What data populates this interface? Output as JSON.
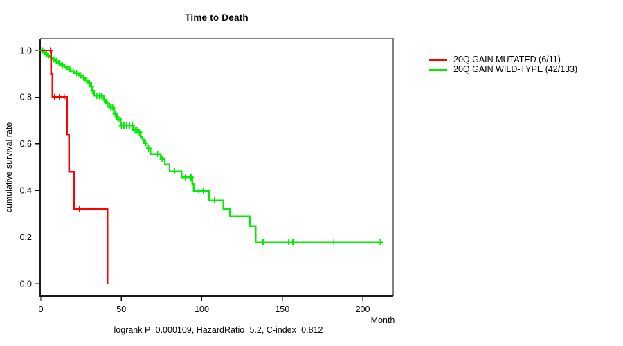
{
  "chart_data": {
    "type": "line",
    "chart_kind": "kaplan-meier-survival-step",
    "title": "Time to Death",
    "xlabel": "Month",
    "ylabel": "cumulative survival rate",
    "annotation": "logrank P=0.000109, HazardRatio=5.2, C-index=0.812",
    "xlim": [
      0,
      219
    ],
    "ylim": [
      0,
      1.05
    ],
    "x_ticks": [
      0,
      50,
      100,
      150,
      200
    ],
    "x_tick_labels": [
      "0",
      "50",
      "100",
      "150",
      "200"
    ],
    "y_ticks": [
      0,
      0.2,
      0.4,
      0.6,
      0.8,
      1.0
    ],
    "y_tick_labels": [
      "0.0",
      "0.2",
      "0.4",
      "0.6",
      "0.8",
      "1.0"
    ],
    "grid": false,
    "legend_position": "outside-right",
    "series": [
      {
        "name": "20Q GAIN MUTATED (6/11)",
        "color": "#ff0000",
        "steps": [
          [
            0,
            1.0
          ],
          [
            6.3,
            0.9
          ],
          [
            7.1,
            0.8
          ],
          [
            16.3,
            0.64
          ],
          [
            17.6,
            0.48
          ],
          [
            20.6,
            0.32
          ],
          [
            41.5,
            0.0
          ]
        ],
        "censor_times": [
          6.0,
          8.5,
          11.5,
          14.5,
          24.0
        ],
        "end_time": 41.5
      },
      {
        "name": "20Q GAIN WILD-TYPE (42/133)",
        "color": "#00ee00",
        "steps": [
          [
            0,
            1.0
          ],
          [
            1.5,
            0.992
          ],
          [
            3,
            0.985
          ],
          [
            4.5,
            0.977
          ],
          [
            6,
            0.97
          ],
          [
            7.5,
            0.962
          ],
          [
            9,
            0.954
          ],
          [
            10.5,
            0.945
          ],
          [
            12.5,
            0.938
          ],
          [
            14.5,
            0.93
          ],
          [
            16.5,
            0.921
          ],
          [
            18.5,
            0.912
          ],
          [
            21,
            0.903
          ],
          [
            23.5,
            0.893
          ],
          [
            25.5,
            0.884
          ],
          [
            27.5,
            0.872
          ],
          [
            29.5,
            0.86
          ],
          [
            31,
            0.845
          ],
          [
            32,
            0.827
          ],
          [
            33,
            0.806
          ],
          [
            39,
            0.788
          ],
          [
            40.5,
            0.772
          ],
          [
            42.5,
            0.757
          ],
          [
            45.5,
            0.728
          ],
          [
            47.5,
            0.707
          ],
          [
            49.5,
            0.678
          ],
          [
            57.5,
            0.659
          ],
          [
            60.5,
            0.649
          ],
          [
            62,
            0.629
          ],
          [
            63,
            0.618
          ],
          [
            64,
            0.603
          ],
          [
            66,
            0.58
          ],
          [
            68,
            0.556
          ],
          [
            74.5,
            0.535
          ],
          [
            77,
            0.511
          ],
          [
            80,
            0.482
          ],
          [
            87.5,
            0.456
          ],
          [
            94,
            0.426
          ],
          [
            95,
            0.397
          ],
          [
            104.5,
            0.357
          ],
          [
            113.5,
            0.321
          ],
          [
            117.5,
            0.289
          ],
          [
            130,
            0.247
          ],
          [
            133.5,
            0.179
          ]
        ],
        "censor_times": [
          0.6,
          1.1,
          2.3,
          3.4,
          4.6,
          6.2,
          8.0,
          9.7,
          11.4,
          13.4,
          15.6,
          17.8,
          20.1,
          22.3,
          24.6,
          26.6,
          28.6,
          30.2,
          31.5,
          32.3,
          34.6,
          36.2,
          37.6,
          39.5,
          41.3,
          43.5,
          44.5,
          46.3,
          48.5,
          50.0,
          51.6,
          53.3,
          55.0,
          56.8,
          58.6,
          59.6,
          61.2,
          65.0,
          67.0,
          72.6,
          75.5,
          83.0,
          89.9,
          93.3,
          98.2,
          101.0,
          107.9,
          138,
          154,
          156.5,
          182,
          211
        ],
        "end_time": 212.5
      }
    ]
  }
}
